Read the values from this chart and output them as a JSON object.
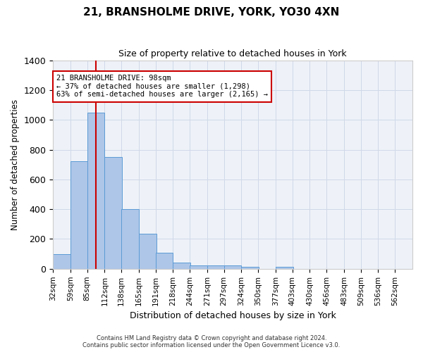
{
  "title1": "21, BRANSHOLME DRIVE, YORK, YO30 4XN",
  "title2": "Size of property relative to detached houses in York",
  "xlabel": "Distribution of detached houses by size in York",
  "ylabel": "Number of detached properties",
  "bin_labels": [
    "32sqm",
    "59sqm",
    "85sqm",
    "112sqm",
    "138sqm",
    "165sqm",
    "191sqm",
    "218sqm",
    "244sqm",
    "271sqm",
    "297sqm",
    "324sqm",
    "350sqm",
    "377sqm",
    "403sqm",
    "430sqm",
    "456sqm",
    "483sqm",
    "509sqm",
    "536sqm",
    "562sqm"
  ],
  "bin_edges": [
    32,
    59,
    85,
    112,
    138,
    165,
    191,
    218,
    244,
    271,
    297,
    324,
    350,
    377,
    403,
    430,
    456,
    483,
    509,
    536,
    562
  ],
  "bar_heights": [
    100,
    720,
    1050,
    750,
    400,
    235,
    110,
    40,
    25,
    25,
    25,
    15,
    0,
    15,
    0,
    0,
    0,
    0,
    0,
    0
  ],
  "bar_color": "#aec6e8",
  "bar_edge_color": "#5b9bd5",
  "property_size": 98,
  "property_label": "21 BRANSHOLME DRIVE: 98sqm",
  "annotation_line1": "← 37% of detached houses are smaller (1,298)",
  "annotation_line2": "63% of semi-detached houses are larger (2,165) →",
  "vline_color": "#cc0000",
  "annotation_box_edge": "#cc0000",
  "annotation_box_face": "#ffffff",
  "ylim": [
    0,
    1400
  ],
  "yticks": [
    0,
    200,
    400,
    600,
    800,
    1000,
    1200,
    1400
  ],
  "grid_color": "#d0d8e8",
  "background_color": "#eef2f8",
  "footer1": "Contains HM Land Registry data © Crown copyright and database right 2024.",
  "footer2": "Contains public sector information licensed under the Open Government Licence v3.0."
}
